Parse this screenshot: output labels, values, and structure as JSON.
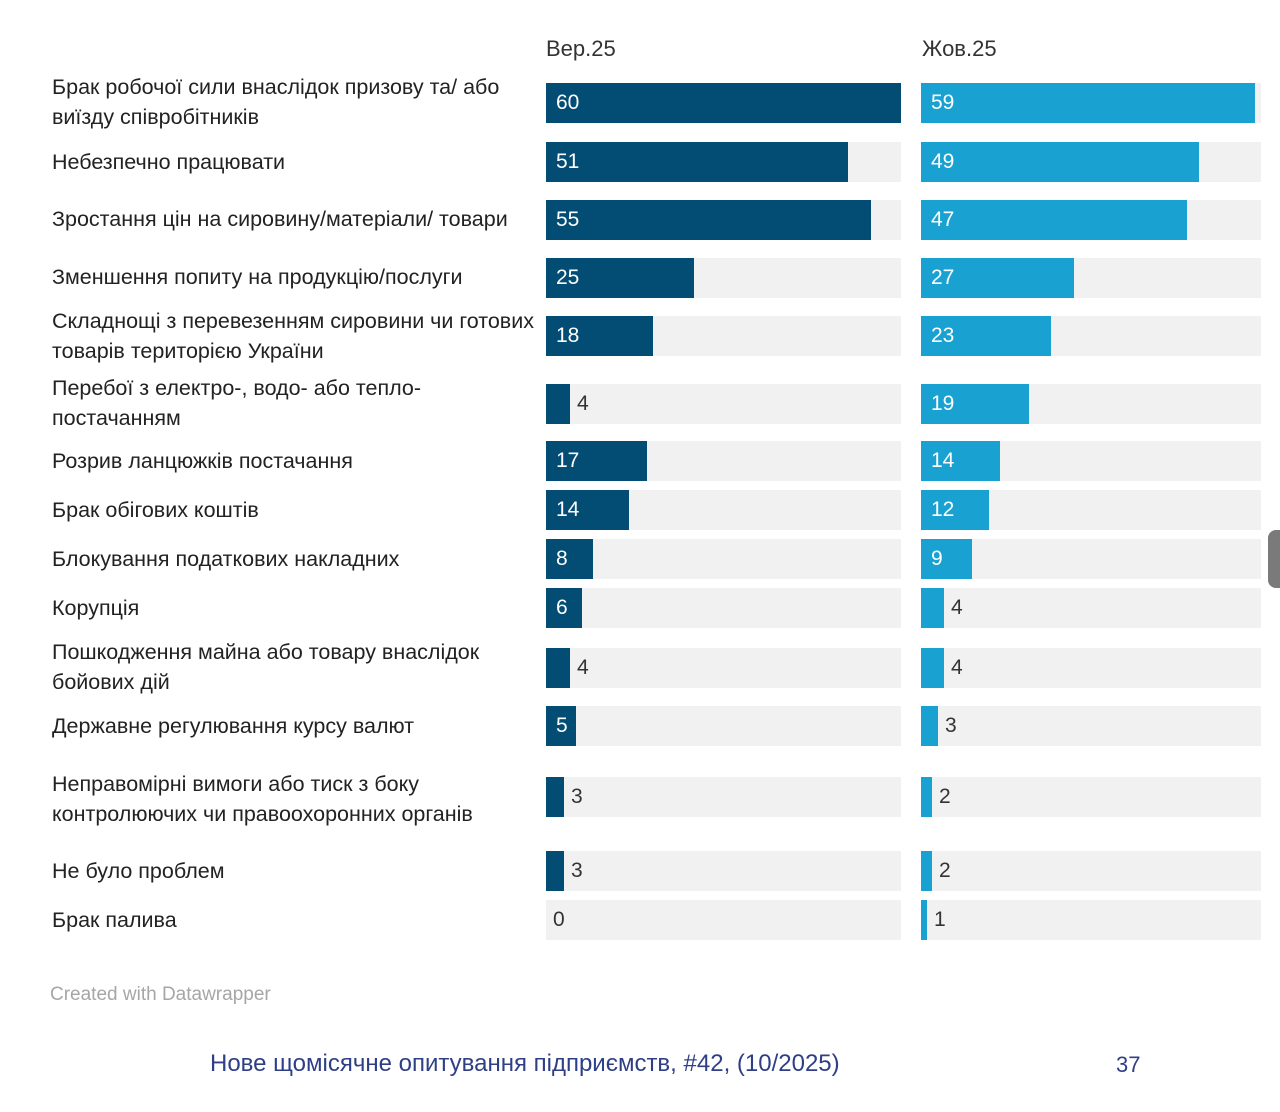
{
  "chart_data": {
    "type": "bar",
    "orientation": "horizontal",
    "title": "",
    "xlim": [
      0,
      60
    ],
    "categories": [
      "Брак робочої сили внаслідок призову та/ або виїзду співробітників",
      "Небезпечно працювати",
      "Зростання цін на сировину/матеріали/ товари",
      "Зменшення попиту на продукцію/послуги",
      "Складнощі з перевезенням сировини чи готових товарів територією України",
      "Перебої з електро-, водо- або тепло- постачанням",
      "Розрив ланцюжків постачання",
      "Брак обігових коштів",
      "Блокування податкових накладних",
      "Корупція",
      "Пошкодження майна або товару внаслідок бойових дій",
      "Державне регулювання курсу валют",
      "Неправомірні вимоги або тиск з боку контролюючих чи правоохоронних органів",
      "Не було проблем",
      "Брак палива"
    ],
    "series": [
      {
        "name": "Вер.25",
        "color": "#034d74",
        "values": [
          60,
          51,
          55,
          25,
          18,
          4,
          17,
          14,
          8,
          6,
          4,
          5,
          3,
          3,
          0
        ]
      },
      {
        "name": "Жов.25",
        "color": "#19a2d1",
        "values": [
          59,
          49,
          47,
          27,
          23,
          19,
          14,
          12,
          9,
          4,
          4,
          3,
          2,
          2,
          1
        ]
      }
    ],
    "track_color": "#f1f1f1"
  },
  "credit": "Created with Datawrapper",
  "footer": {
    "title": "Нове щомісячне опитування підприємств, #42, (10/2025)",
    "page_number": "37"
  }
}
